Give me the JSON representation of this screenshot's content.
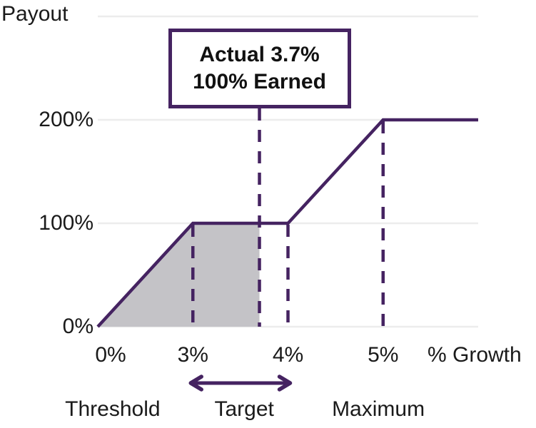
{
  "annotation": {
    "line1": "Actual 3.7%",
    "line2": "100% Earned",
    "anchor_x": 3.7
  },
  "colors": {
    "accent_purple": "#452361",
    "shaded_gray": "#c4c3c7",
    "gridline_gray": "#ececec",
    "text": "#1a1a1a"
  },
  "chart_data": {
    "type": "line",
    "title": "",
    "ylabel": "Payout",
    "xlabel": "% Growth",
    "x_ticks": [
      {
        "value": 0,
        "label": "0%"
      },
      {
        "value": 3,
        "label": "3%"
      },
      {
        "value": 4,
        "label": "4%"
      },
      {
        "value": 5,
        "label": "5%"
      }
    ],
    "y_ticks": [
      {
        "value": 0,
        "label": "0%"
      },
      {
        "value": 100,
        "label": "100%"
      },
      {
        "value": 200,
        "label": "200%"
      }
    ],
    "y_gridline_values": [
      0,
      100,
      200,
      300
    ],
    "y_range": [
      0,
      300
    ],
    "grid": "horizontal-only",
    "series": [
      {
        "name": "payout-curve",
        "points": [
          [
            0,
            0
          ],
          [
            3,
            100
          ],
          [
            4,
            100
          ],
          [
            5,
            200
          ],
          [
            6,
            200
          ]
        ]
      }
    ],
    "shaded_region": {
      "name": "earned-area",
      "points": [
        [
          0,
          0
        ],
        [
          3,
          100
        ],
        [
          3.7,
          100
        ],
        [
          3.7,
          0
        ]
      ]
    },
    "dashed_guides": [
      {
        "x": 3,
        "top": 100
      },
      {
        "x": 3.7,
        "top": "annotation"
      },
      {
        "x": 4,
        "top": 100
      },
      {
        "x": 5,
        "top": 200
      }
    ],
    "target_arrow": {
      "from_x": 3,
      "to_x": 4
    },
    "zone_labels": [
      {
        "label": "Threshold",
        "anchor_x": 0.47
      },
      {
        "label": "Target",
        "anchor_x": 3.54
      },
      {
        "label": "Maximum",
        "anchor_x": 4.95
      }
    ],
    "actual": {
      "growth_pct": 3.7,
      "payout_earned_pct": 100
    }
  }
}
